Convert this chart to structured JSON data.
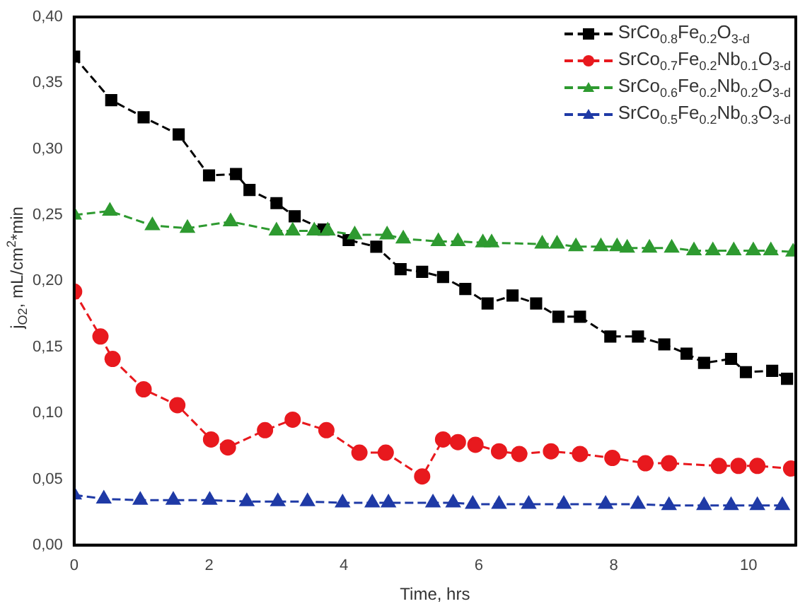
{
  "chart_data": {
    "type": "line",
    "xlabel": "Time, hrs",
    "ylabel": "j$_{O2}$, mL/cm$^{2}$*min",
    "xlim": [
      0,
      10.7
    ],
    "xticks": [
      0,
      2,
      4,
      6,
      8,
      10
    ],
    "ylim": [
      0,
      0.4
    ],
    "yticks": [
      {
        "value": 0,
        "label": "0,00"
      },
      {
        "value": 0.05,
        "label": "0,05"
      },
      {
        "value": 0.1,
        "label": "0,10"
      },
      {
        "value": 0.15,
        "label": "0,15"
      },
      {
        "value": 0.2,
        "label": "0,20"
      },
      {
        "value": 0.25,
        "label": "0,25"
      },
      {
        "value": 0.3,
        "label": "0,30"
      },
      {
        "value": 0.35,
        "label": "0,35"
      },
      {
        "value": 0.4,
        "label": "0,40"
      }
    ],
    "grid": false,
    "legend": "top right",
    "line_style": "dashed",
    "series": [
      {
        "name": "SrCo$_{0.8}$Fe$_{0.2}$O$_{3-d}$",
        "color": "#000000",
        "marker": "square",
        "x": [
          0,
          0.55,
          1.03,
          1.55,
          2.0,
          2.4,
          2.6,
          3.0,
          3.27,
          3.7,
          4.07,
          4.48,
          4.84,
          5.16,
          5.47,
          5.8,
          6.13,
          6.5,
          6.85,
          7.18,
          7.5,
          7.95,
          8.36,
          8.75,
          9.08,
          9.34,
          9.74,
          9.96,
          10.35,
          10.57
        ],
        "values": [
          0.37,
          0.337,
          0.324,
          0.311,
          0.28,
          0.281,
          0.269,
          0.259,
          0.249,
          0.239,
          0.231,
          0.226,
          0.209,
          0.207,
          0.203,
          0.194,
          0.183,
          0.189,
          0.183,
          0.173,
          0.173,
          0.158,
          0.158,
          0.152,
          0.145,
          0.138,
          0.141,
          0.131,
          0.132,
          0.126
        ]
      },
      {
        "name": "SrCo$_{0.7}$Fe$_{0.2}$Nb$_{0.1}$O$_{3-d}$",
        "color": "#e8191e",
        "marker": "circle",
        "x": [
          0,
          0.39,
          0.57,
          1.03,
          1.53,
          2.03,
          2.28,
          2.83,
          3.24,
          3.74,
          4.23,
          4.62,
          5.16,
          5.47,
          5.69,
          5.95,
          6.3,
          6.6,
          7.07,
          7.5,
          7.98,
          8.47,
          8.82,
          9.56,
          9.85,
          10.13,
          10.63
        ],
        "values": [
          0.192,
          0.158,
          0.141,
          0.118,
          0.106,
          0.08,
          0.074,
          0.087,
          0.095,
          0.087,
          0.07,
          0.07,
          0.052,
          0.08,
          0.078,
          0.076,
          0.071,
          0.069,
          0.071,
          0.069,
          0.066,
          0.062,
          0.062,
          0.06,
          0.06,
          0.06,
          0.058
        ]
      },
      {
        "name": "SrCo$_{0.6}$Fe$_{0.2}$Nb$_{0.2}$O$_{3-d}$",
        "color": "#2e9a30",
        "marker": "triangle",
        "x": [
          0,
          0.53,
          1.16,
          1.68,
          2.32,
          3.0,
          3.24,
          3.56,
          3.76,
          4.16,
          4.64,
          4.88,
          5.4,
          5.69,
          6.06,
          6.19,
          6.94,
          7.16,
          7.44,
          7.81,
          8.05,
          8.2,
          8.53,
          8.86,
          9.19,
          9.47,
          9.78,
          10.07,
          10.33,
          10.66
        ],
        "values": [
          0.25,
          0.253,
          0.242,
          0.24,
          0.245,
          0.238,
          0.238,
          0.238,
          0.238,
          0.235,
          0.235,
          0.232,
          0.23,
          0.23,
          0.229,
          0.229,
          0.228,
          0.228,
          0.226,
          0.226,
          0.226,
          0.225,
          0.225,
          0.225,
          0.223,
          0.223,
          0.223,
          0.223,
          0.223,
          0.222
        ]
      },
      {
        "name": "SrCo$_{0.5}$Fe$_{0.2}$Nb$_{0.3}$O$_{3-d}$",
        "color": "#1f3aa6",
        "marker": "triangle",
        "x": [
          0,
          0.44,
          0.98,
          1.47,
          2.01,
          2.56,
          3.02,
          3.46,
          3.98,
          4.42,
          4.66,
          5.32,
          5.62,
          5.91,
          6.3,
          6.74,
          7.26,
          7.88,
          8.36,
          8.82,
          9.34,
          9.74,
          10.13,
          10.5
        ],
        "values": [
          0.038,
          0.035,
          0.034,
          0.034,
          0.034,
          0.033,
          0.033,
          0.033,
          0.032,
          0.032,
          0.032,
          0.032,
          0.032,
          0.031,
          0.031,
          0.031,
          0.031,
          0.031,
          0.031,
          0.03,
          0.03,
          0.03,
          0.03,
          0.03
        ]
      }
    ]
  }
}
